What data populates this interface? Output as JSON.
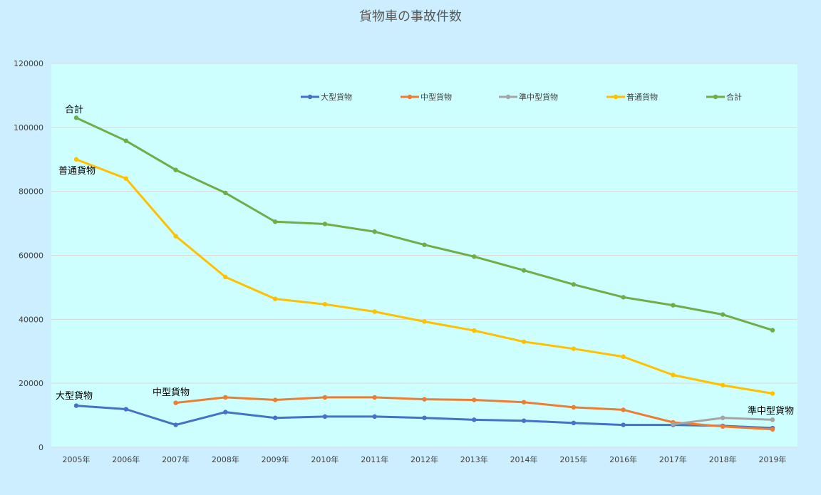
{
  "chart_data": {
    "type": "line",
    "title": "貨物車の事故件数",
    "xlabel": "",
    "ylabel": "",
    "categories": [
      "2005年",
      "2006年",
      "2007年",
      "2008年",
      "2009年",
      "2010年",
      "2011年",
      "2012年",
      "2013年",
      "2014年",
      "2015年",
      "2016年",
      "2017年",
      "2018年",
      "2019年"
    ],
    "ylim": [
      0,
      120000
    ],
    "yticks": [
      0,
      20000,
      40000,
      60000,
      80000,
      100000,
      120000
    ],
    "ytick_labels": [
      "0",
      "20000",
      "40000",
      "60000",
      "80000",
      "100000",
      "120000"
    ],
    "grid": true,
    "legend_position": "top",
    "series": [
      {
        "name": "大型貨物",
        "color": "#4472c4",
        "annotation": "大型貨物",
        "values": [
          13000,
          11900,
          7000,
          11000,
          9200,
          9600,
          9600,
          9200,
          8600,
          8300,
          7600,
          7000,
          7000,
          6700,
          6000
        ]
      },
      {
        "name": "中型貨物",
        "color": "#ed7d31",
        "annotation": "中型貨物",
        "values": [
          null,
          null,
          13900,
          15600,
          14800,
          15600,
          15600,
          15000,
          14800,
          14100,
          12500,
          11700,
          7800,
          6500,
          5600
        ]
      },
      {
        "name": "準中型貨物",
        "color": "#a5a5a5",
        "annotation": "準中型貨物",
        "values": [
          null,
          null,
          null,
          null,
          null,
          null,
          null,
          null,
          null,
          null,
          null,
          null,
          7200,
          9200,
          8600
        ]
      },
      {
        "name": "普通貨物",
        "color": "#ffc000",
        "annotation": "普通貨物",
        "values": [
          90000,
          84000,
          66000,
          53200,
          46400,
          44700,
          42400,
          39300,
          36500,
          33000,
          30800,
          28300,
          22600,
          19400,
          16800
        ]
      },
      {
        "name": "合計",
        "color": "#70ad47",
        "annotation": "合計",
        "values": [
          103000,
          95800,
          86700,
          79500,
          70500,
          69800,
          67400,
          63300,
          59600,
          55300,
          50900,
          46900,
          44400,
          41500,
          36600
        ]
      }
    ]
  }
}
